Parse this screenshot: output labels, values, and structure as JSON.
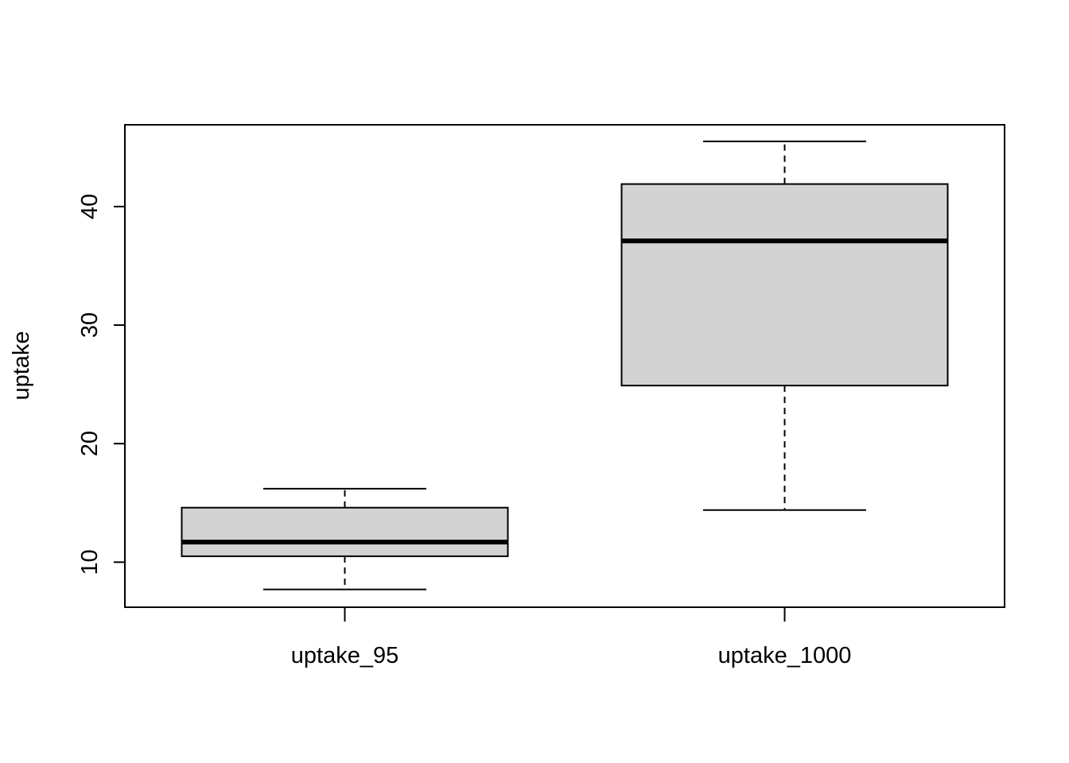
{
  "chart_data": {
    "type": "boxplot",
    "title": "",
    "xlabel": "",
    "ylabel": "uptake",
    "categories": [
      "uptake_95",
      "uptake_1000"
    ],
    "boxes": [
      {
        "category": "uptake_95",
        "min": 7.7,
        "q1": 10.5,
        "median": 11.7,
        "q3": 14.6,
        "max": 16.2
      },
      {
        "category": "uptake_1000",
        "min": 14.4,
        "q1": 24.9,
        "median": 37.1,
        "q3": 41.9,
        "max": 45.5
      }
    ],
    "ylim": [
      6.2,
      46.9
    ],
    "yticks": [
      10,
      20,
      30,
      40
    ],
    "ytick_labels": [
      "10",
      "20",
      "30",
      "40"
    ],
    "grid": false,
    "colors": {
      "box_fill": "#d3d3d3",
      "stroke": "#000000",
      "background": "#ffffff"
    }
  }
}
